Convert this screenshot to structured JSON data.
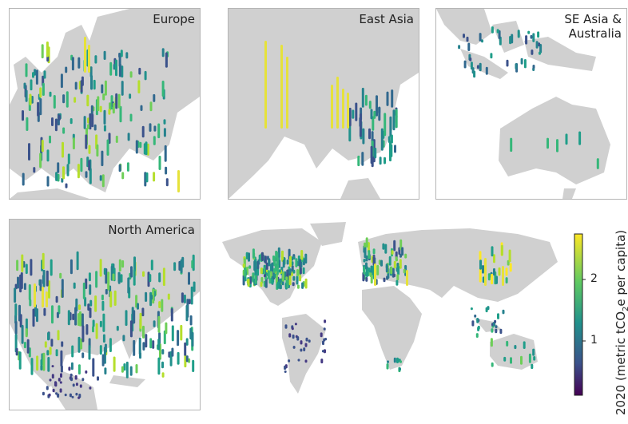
{
  "panels": {
    "europe": {
      "label": "Europe"
    },
    "eastasia": {
      "label": "East Asia"
    },
    "seasia": {
      "label": "SE Asia &\nAustralia"
    },
    "namerica": {
      "label": "North America"
    }
  },
  "colorbar": {
    "title_prefix": "2020 (metric tCO",
    "title_sub": "2",
    "title_suffix": "e per capita)",
    "ticks": [
      "1",
      "2"
    ],
    "range": [
      0.2,
      2.8
    ],
    "colormap": "viridis"
  },
  "colors": {
    "land": "#d0d0d0",
    "border": "#ffffff",
    "low": "#440154",
    "mid": "#21918c",
    "high": "#fde725"
  }
}
